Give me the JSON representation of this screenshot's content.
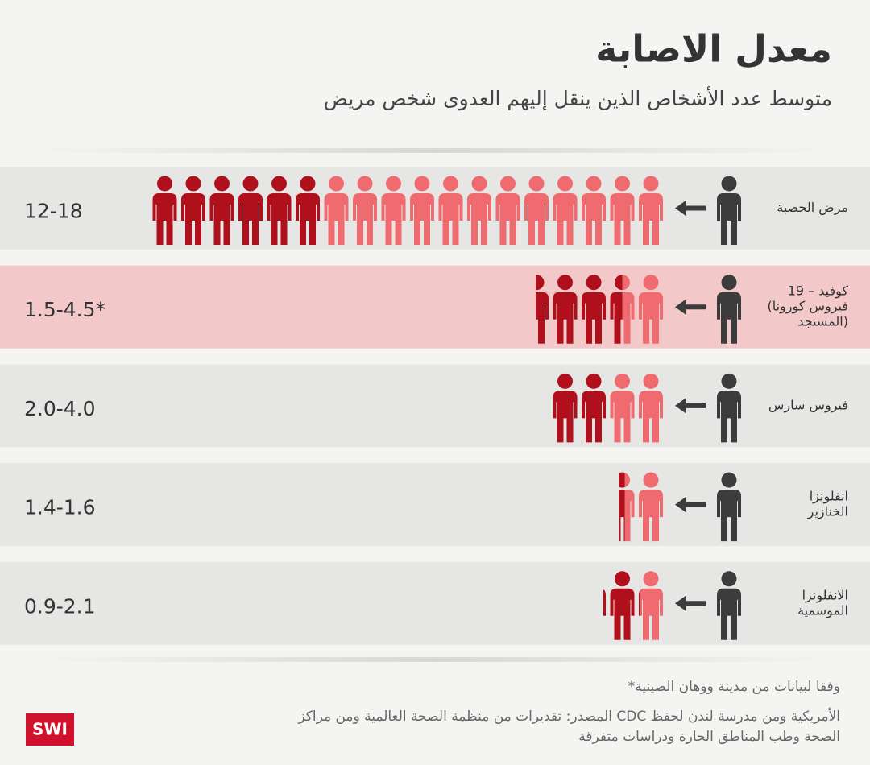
{
  "header": {
    "title": "معدل الاصابة",
    "subtitle": "متوسط عدد الأشخاص الذين  ينقل إليهم العدوى شخص مريض"
  },
  "rows": [
    {
      "label": [
        "مرض الحصبة"
      ],
      "range": "12-18",
      "low": 12,
      "high": 18,
      "highlight": false
    },
    {
      "label": [
        "كوفيد – 19",
        "(فيروس كورونا",
        "المستجد)"
      ],
      "range": "1.5-4.5*",
      "low": 1.5,
      "high": 4.5,
      "highlight": true
    },
    {
      "label": [
        "فيروس سارس"
      ],
      "range": "2.0-4.0",
      "low": 2.0,
      "high": 4.0,
      "highlight": false
    },
    {
      "label": [
        "انفلونزا",
        "الخنازير"
      ],
      "range": "1.4-1.6",
      "low": 1.4,
      "high": 1.6,
      "highlight": false
    },
    {
      "label": [
        "الانفلونزا",
        "الموسمية"
      ],
      "range": "0.9-2.1",
      "low": 0.9,
      "high": 2.1,
      "highlight": false
    }
  ],
  "footer": {
    "note": "*وفقا لبيانات من مدينة ووهان الصينية",
    "source": [
      "المصدر: تقديرات من منظمة الصحة العالمية ومن مراكز CDC الأمريكية ومن مدرسة لندن لحفظ",
      "الصحة وطب المناطق الحارة ودراسات متفرقة"
    ],
    "logo": "SWI"
  }
}
